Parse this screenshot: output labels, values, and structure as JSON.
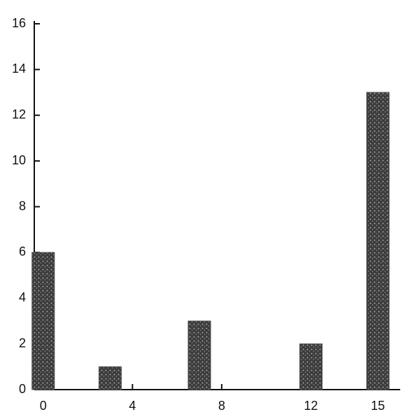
{
  "chart_data": {
    "type": "bar",
    "x": [
      0,
      3,
      7,
      12,
      15
    ],
    "values": [
      6,
      1,
      3,
      2,
      13
    ],
    "color": "#4a4a4a",
    "xlim": [
      -0.4,
      16
    ],
    "xticks": [
      0,
      4,
      8,
      12,
      15
    ],
    "ylim": [
      0,
      16
    ],
    "yticks": [
      0,
      2,
      4,
      6,
      8,
      10,
      12,
      14,
      16
    ]
  }
}
